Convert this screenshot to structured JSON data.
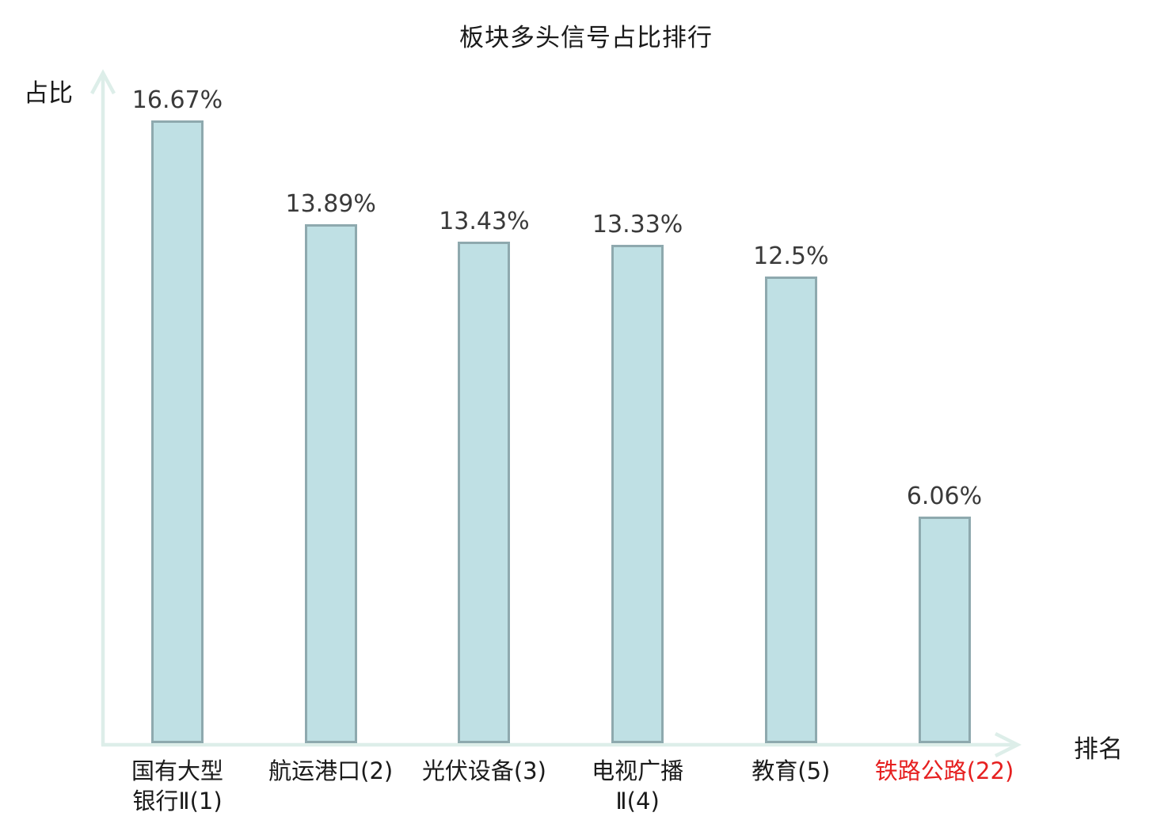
{
  "chart_data": {
    "type": "bar",
    "title": "板块多头信号占比排行",
    "xlabel": "排名",
    "ylabel": "占比",
    "categories": [
      "国有大型\n银行Ⅱ(1)",
      "航运港口(2)",
      "光伏设备(3)",
      "电视广播\nⅡ(4)",
      "教育(5)",
      "铁路公路(22)"
    ],
    "values": [
      16.67,
      13.89,
      13.43,
      13.33,
      12.5,
      6.06
    ],
    "value_labels": [
      "16.67%",
      "13.89%",
      "13.43%",
      "13.33%",
      "12.5%",
      "6.06%"
    ],
    "ylim": [
      0,
      18
    ],
    "grid": false,
    "legend": "none",
    "bar_fill_color": "#bfe0e4",
    "bar_border_color": "#8ea9ae",
    "axis_color": "#ddeee9",
    "title_color": "#1a1a1a",
    "value_label_color": "#3a3a3a",
    "category_label_color": "#1a1a1a",
    "highlight_index": 5,
    "highlight_color": "#e62020",
    "highlighted_category": "铁路公路(22)"
  }
}
